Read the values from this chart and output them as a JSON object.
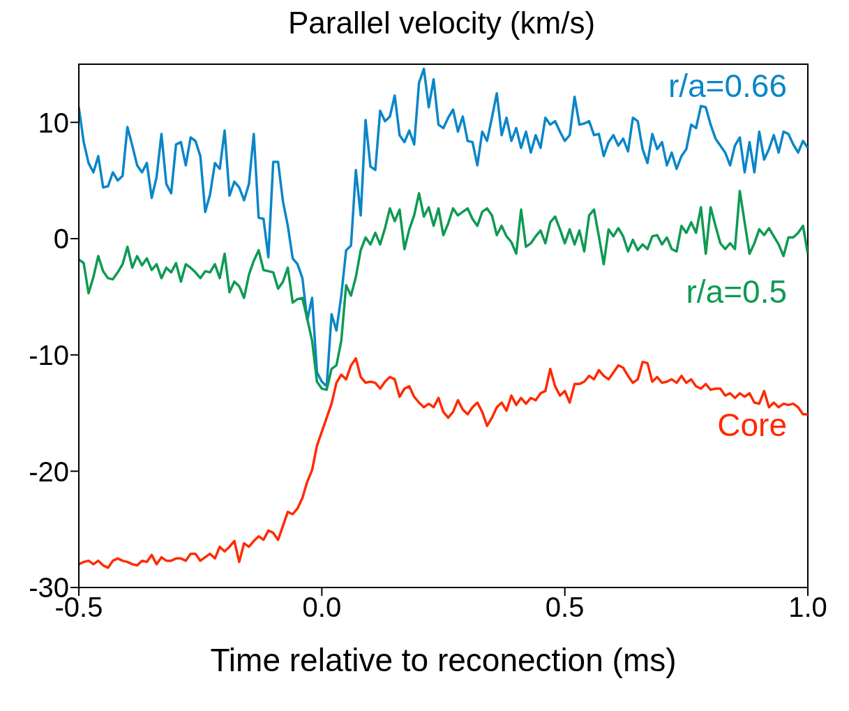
{
  "chart_data": {
    "type": "line",
    "title": "Parallel velocity (km/s)",
    "xlabel": "Time relative to reconection (ms)",
    "xlim": [
      -0.5,
      1.0
    ],
    "xticks": [
      {
        "value": -0.5,
        "label": "-0.5"
      },
      {
        "value": 0,
        "label": "0.0"
      },
      {
        "value": 0.5,
        "label": "0.5"
      },
      {
        "value": 1,
        "label": "1.0"
      }
    ],
    "ylim": [
      -30,
      15
    ],
    "yticks": [
      -30,
      -20,
      -10,
      0,
      10
    ],
    "grid": false,
    "legend": false,
    "x": [
      -0.5,
      -0.49,
      -0.48,
      -0.47,
      -0.46,
      -0.45,
      -0.44,
      -0.43,
      -0.42,
      -0.41,
      -0.4,
      -0.39,
      -0.38,
      -0.37,
      -0.36,
      -0.35,
      -0.34,
      -0.33,
      -0.32,
      -0.31,
      -0.3,
      -0.29,
      -0.28,
      -0.27,
      -0.26,
      -0.25,
      -0.24,
      -0.23,
      -0.22,
      -0.21,
      -0.2,
      -0.19,
      -0.18,
      -0.17,
      -0.16,
      -0.15,
      -0.14,
      -0.13,
      -0.12,
      -0.11,
      -0.1,
      -0.09,
      -0.08,
      -0.07,
      -0.06,
      -0.05,
      -0.04,
      -0.03,
      -0.02,
      -0.01,
      0,
      0.01,
      0.02,
      0.03,
      0.04,
      0.05,
      0.06,
      0.07,
      0.08,
      0.09,
      0.1,
      0.11,
      0.12,
      0.13,
      0.14,
      0.15,
      0.16,
      0.17,
      0.18,
      0.19,
      0.2,
      0.21,
      0.22,
      0.23,
      0.24,
      0.25,
      0.26,
      0.27,
      0.28,
      0.29,
      0.3,
      0.31,
      0.32,
      0.33,
      0.34,
      0.35,
      0.36,
      0.37,
      0.38,
      0.39,
      0.4,
      0.41,
      0.42,
      0.43,
      0.44,
      0.45,
      0.46,
      0.47,
      0.48,
      0.49,
      0.5,
      0.51,
      0.52,
      0.53,
      0.54,
      0.55,
      0.56,
      0.57,
      0.58,
      0.59,
      0.6,
      0.61,
      0.62,
      0.63,
      0.64,
      0.65,
      0.66,
      0.67,
      0.68,
      0.69,
      0.7,
      0.71,
      0.72,
      0.73,
      0.74,
      0.75,
      0.76,
      0.77,
      0.78,
      0.79,
      0.8,
      0.81,
      0.82,
      0.83,
      0.84,
      0.85,
      0.86,
      0.87,
      0.88,
      0.89,
      0.9,
      0.91,
      0.92,
      0.93,
      0.94,
      0.95,
      0.96,
      0.97,
      0.98,
      0.99,
      1.0
    ],
    "series": [
      {
        "name": "r/a=0.66",
        "color": "#0a86c8",
        "values": [
          11.3,
          8.3,
          6.5,
          5.7,
          7.1,
          4.4,
          4.5,
          5.7,
          5.0,
          5.4,
          9.6,
          8.0,
          6.3,
          5.7,
          6.5,
          3.5,
          5.3,
          9.0,
          4.7,
          3.9,
          8.1,
          8.3,
          6.3,
          8.7,
          8.4,
          7.1,
          2.3,
          3.8,
          6.5,
          6.0,
          9.3,
          3.7,
          4.9,
          4.4,
          3.3,
          4.7,
          9.0,
          1.8,
          1.7,
          -1.6,
          6.6,
          6.6,
          3.2,
          1.1,
          -1.7,
          -2.2,
          -3.4,
          -7.0,
          -5.1,
          -11.5,
          -12.3,
          -12.7,
          -6.5,
          -7.9,
          -4.9,
          -1.0,
          -0.6,
          5.9,
          2.0,
          10.2,
          6.2,
          5.9,
          11.0,
          10.1,
          10.5,
          12.3,
          8.9,
          8.3,
          9.3,
          8.1,
          13.4,
          14.6,
          11.3,
          13.7,
          9.8,
          9.5,
          10.4,
          11.1,
          9.2,
          10.5,
          8.4,
          8.3,
          6.3,
          9.2,
          8.4,
          10.4,
          12.5,
          8.9,
          10.4,
          8.4,
          9.5,
          7.8,
          9.2,
          7.4,
          8.9,
          7.8,
          10.4,
          9.8,
          10.1,
          9.2,
          8.4,
          8.9,
          12.2,
          9.8,
          9.9,
          10.1,
          8.9,
          9.0,
          7.1,
          8.3,
          8.9,
          8.0,
          8.6,
          7.5,
          10.4,
          10.1,
          7.7,
          6.5,
          9.0,
          7.7,
          8.3,
          6.3,
          7.4,
          6.0,
          7.1,
          7.7,
          9.8,
          9.5,
          11.4,
          11.3,
          9.8,
          8.6,
          8.0,
          7.4,
          6.3,
          8.0,
          8.7,
          5.7,
          8.3,
          5.7,
          9.2,
          6.8,
          7.7,
          8.9,
          7.4,
          9.2,
          9.0,
          8.1,
          7.4,
          8.4,
          7.8
        ]
      },
      {
        "name": "r/a=0.5",
        "color": "#0e9a52",
        "values": [
          -1.8,
          -2.1,
          -4.7,
          -3.3,
          -1.5,
          -2.8,
          -3.4,
          -3.5,
          -2.9,
          -2.2,
          -0.7,
          -2.5,
          -1.5,
          -2.3,
          -1.7,
          -2.7,
          -2.2,
          -3.4,
          -2.5,
          -2.9,
          -2.1,
          -3.7,
          -2.2,
          -2.5,
          -2.9,
          -3.4,
          -2.8,
          -2.9,
          -2.2,
          -3.4,
          -1.3,
          -4.6,
          -3.7,
          -4.1,
          -5.1,
          -3.1,
          -1.9,
          -1.0,
          -2.7,
          -2.8,
          -2.9,
          -4.3,
          -3.7,
          -2.5,
          -5.5,
          -5.2,
          -5.1,
          -6.9,
          -8.8,
          -12.3,
          -12.9,
          -13.0,
          -11.2,
          -10.9,
          -8.8,
          -4.0,
          -4.9,
          -3.3,
          -1.0,
          0.1,
          -0.5,
          0.5,
          -0.5,
          0.9,
          2.6,
          1.5,
          2.5,
          -0.9,
          0.8,
          2.0,
          3.9,
          1.9,
          2.7,
          1.1,
          2.6,
          0.3,
          1.3,
          2.6,
          2.0,
          2.3,
          2.6,
          1.7,
          1.1,
          2.3,
          2.6,
          2.0,
          0.3,
          1.1,
          0.2,
          -0.3,
          -1.3,
          2.5,
          -0.7,
          -0.4,
          0.2,
          0.7,
          -0.4,
          1.4,
          1.9,
          0.8,
          -0.4,
          0.8,
          -0.5,
          0.7,
          -1.1,
          2.0,
          2.5,
          0.2,
          -2.2,
          0.8,
          0.2,
          0.9,
          0.2,
          -1.1,
          -0.1,
          -1.0,
          -0.5,
          -0.9,
          0.2,
          0.3,
          -0.5,
          0.1,
          -0.9,
          -1.1,
          1.1,
          0.5,
          1.4,
          0.5,
          2.7,
          -1.3,
          2.7,
          1.1,
          -0.4,
          -0.9,
          -0.4,
          -0.9,
          4.1,
          1.4,
          -1.3,
          -0.4,
          0.8,
          0.3,
          0.9,
          0.2,
          -0.5,
          -1.5,
          0.1,
          0.1,
          0.5,
          1.1,
          -1.3
        ]
      },
      {
        "name": "Core",
        "color": "#ff2a00",
        "values": [
          -28.0,
          -27.8,
          -27.7,
          -28.0,
          -27.7,
          -28.1,
          -28.3,
          -27.7,
          -27.5,
          -27.7,
          -27.8,
          -28.0,
          -28.1,
          -27.7,
          -27.8,
          -27.2,
          -28.0,
          -27.4,
          -27.7,
          -27.7,
          -27.5,
          -27.5,
          -27.7,
          -27.1,
          -27.1,
          -27.7,
          -27.4,
          -27.1,
          -27.5,
          -26.5,
          -26.9,
          -26.5,
          -26.0,
          -27.8,
          -26.2,
          -26.5,
          -26.0,
          -25.6,
          -25.9,
          -25.1,
          -25.3,
          -25.9,
          -24.7,
          -23.5,
          -23.7,
          -23.2,
          -22.3,
          -20.9,
          -19.9,
          -17.8,
          -16.6,
          -15.4,
          -14.2,
          -12.4,
          -11.7,
          -12.1,
          -10.9,
          -10.3,
          -11.9,
          -12.4,
          -12.3,
          -12.4,
          -12.9,
          -12.3,
          -11.9,
          -12.1,
          -13.6,
          -12.9,
          -12.7,
          -13.6,
          -14.1,
          -14.5,
          -14.2,
          -14.5,
          -13.7,
          -14.9,
          -15.4,
          -14.9,
          -13.9,
          -14.7,
          -15.1,
          -14.5,
          -14.1,
          -14.9,
          -16.1,
          -15.4,
          -14.5,
          -14.1,
          -14.8,
          -13.5,
          -14.3,
          -13.7,
          -14.2,
          -13.7,
          -13.9,
          -13.3,
          -13.1,
          -11.2,
          -12.7,
          -13.5,
          -13.1,
          -14.1,
          -12.5,
          -12.5,
          -12.3,
          -11.8,
          -12.1,
          -11.3,
          -11.8,
          -12.1,
          -11.5,
          -10.9,
          -11.1,
          -11.8,
          -12.4,
          -12.1,
          -10.6,
          -10.7,
          -12.3,
          -11.9,
          -12.4,
          -12.3,
          -12.1,
          -12.4,
          -11.8,
          -12.4,
          -12.1,
          -12.7,
          -12.9,
          -12.5,
          -13.0,
          -12.9,
          -12.9,
          -13.5,
          -13.3,
          -13.7,
          -13.3,
          -13.6,
          -13.3,
          -14.1,
          -14.2,
          -13.1,
          -14.5,
          -14.1,
          -14.5,
          -14.2,
          -14.3,
          -14.2,
          -14.5,
          -15.1,
          -15.1
        ]
      }
    ]
  }
}
